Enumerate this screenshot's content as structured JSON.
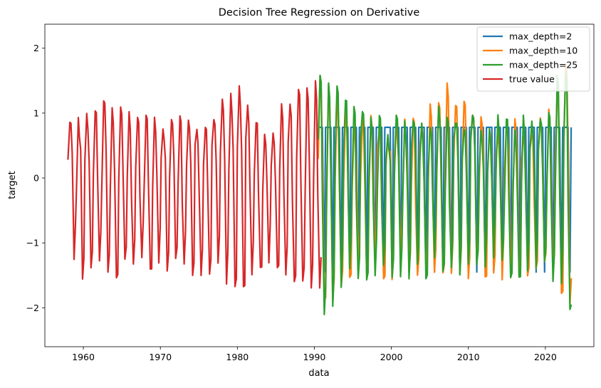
{
  "chart_data": {
    "type": "line",
    "title": "Decision Tree Regression on Derivative",
    "xlabel": "data",
    "ylabel": "target",
    "xlim": [
      1955.0,
      2026.3
    ],
    "ylim": [
      -2.6,
      2.37
    ],
    "xticks": [
      1960,
      1970,
      1980,
      1990,
      2000,
      2010,
      2020
    ],
    "yticks": [
      -2,
      -1,
      0,
      1,
      2
    ],
    "ytick_labels": [
      "−2",
      "−1",
      "0",
      "1",
      "2"
    ],
    "legend_position": "top-right",
    "x_start": 1958.0,
    "x_split": 1990.5,
    "x_end": 2023.0,
    "series": [
      {
        "name": "max_depth=2",
        "color": "#1f77b4",
        "values": [
          0.78,
          0.78,
          0.78,
          -0.3,
          -1.45,
          0.78,
          0.78,
          0.78,
          0.78,
          0.78,
          0.78,
          -0.25,
          -1.45
        ]
      },
      {
        "name": "max_depth=10",
        "color": "#ff7f0e",
        "values": [
          0.7,
          0.95,
          0.85,
          -0.1,
          -1.68,
          0.9,
          1.55,
          0.65,
          0.2,
          1.25,
          0.6,
          -0.3,
          -1.68
        ]
      },
      {
        "name": "max_depth=25",
        "color": "#2ca02c",
        "values": [
          0.6,
          1.4,
          0.75,
          -0.3,
          -2.0,
          0.8,
          1.55,
          0.9,
          0.35,
          0.98,
          0.6,
          -0.3,
          -1.82
        ]
      },
      {
        "name": "true value",
        "color": "#d62728",
        "values": [
          0.85,
          1.0,
          0.8,
          -0.2,
          -1.55,
          0.95,
          1.35,
          0.7,
          0.2,
          1.2,
          0.8,
          -0.3,
          -1.8
        ]
      }
    ]
  }
}
